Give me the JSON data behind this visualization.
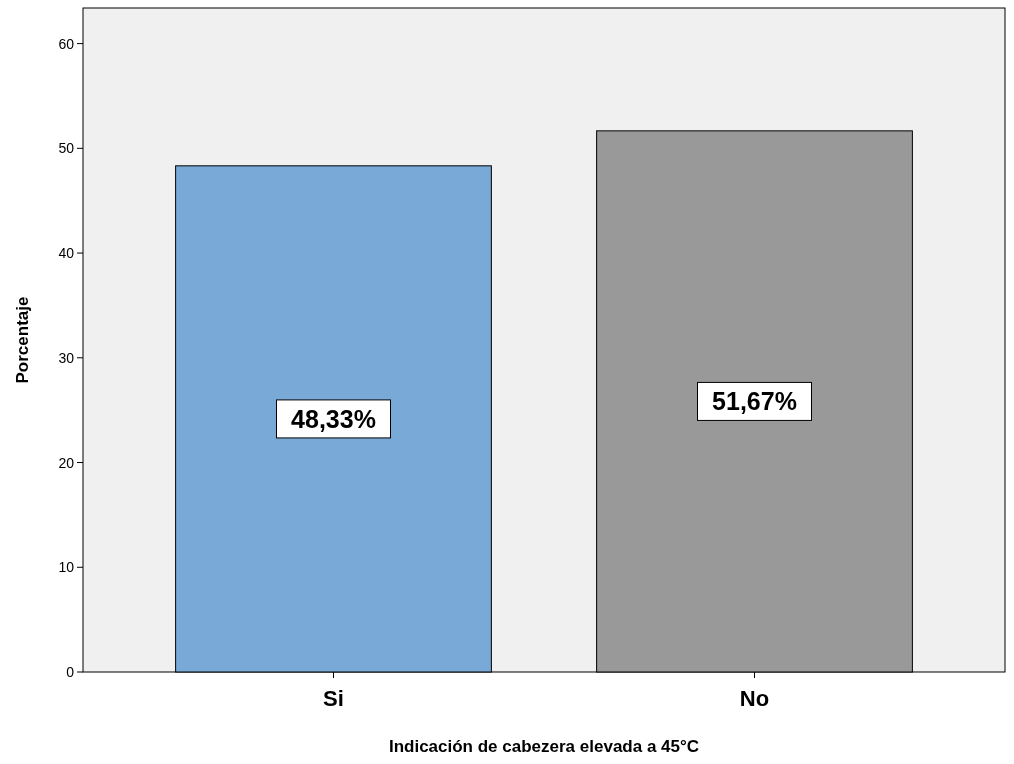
{
  "chart_data": {
    "type": "bar",
    "xlabel": "Indicación de cabezera elevada a 45°C",
    "ylabel": "Porcentaje",
    "categories": [
      "Si",
      "No"
    ],
    "values": [
      48.33,
      51.67
    ],
    "colors": [
      "#79a9d6",
      "#999999"
    ],
    "value_labels": [
      "48,33%",
      "51,67%"
    ],
    "ylim": [
      0,
      63.4
    ],
    "yticks": [
      0,
      10,
      20,
      30,
      40,
      50,
      60
    ],
    "grid": false
  }
}
